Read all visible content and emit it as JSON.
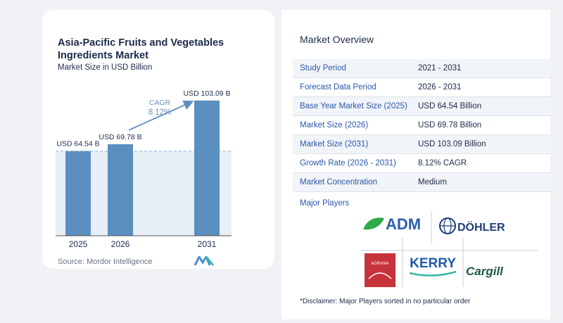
{
  "chart_data": {
    "type": "bar",
    "title": "Asia-Pacific Fruits and Vegetables Ingredients Market",
    "subtitle": "Market Size in USD Billion",
    "categories": [
      "2025",
      "2026",
      "2031"
    ],
    "values": [
      64.54,
      69.78,
      103.09
    ],
    "value_labels": [
      "USD 64.54 B",
      "USD 69.78 B",
      "USD 103.09 B"
    ],
    "cagr_label": "CAGR",
    "cagr_value": "8.12%",
    "ylim": [
      0,
      110
    ],
    "bar_color": "#5b8fbf",
    "axis_color": "#555555"
  },
  "source": "Source: Mordor Intelligence",
  "overview": {
    "title": "Market Overview",
    "rows": [
      {
        "label": "Study Period",
        "value": "2021 - 2031"
      },
      {
        "label": "Forecast Data Period",
        "value": "2026 - 2031"
      },
      {
        "label": "Base Year Market Size (2025)",
        "value": "USD 64.54 Billion"
      },
      {
        "label": "Market Size (2026)",
        "value": "USD 69.78 Billion"
      },
      {
        "label": "Market Size (2031)",
        "value": "USD 103.09 Billion"
      },
      {
        "label": "Growth Rate (2026 - 2031)",
        "value": "8.12% CAGR"
      },
      {
        "label": "Market Concentration",
        "value": "Medium"
      }
    ]
  },
  "players": {
    "label": "Major Players",
    "logos": [
      "ADM",
      "DÖHLER",
      "KERRY",
      "Cargill",
      "AGRANA"
    ]
  },
  "disclaimer": "*Disclaimer: Major Players sorted in no particular order"
}
